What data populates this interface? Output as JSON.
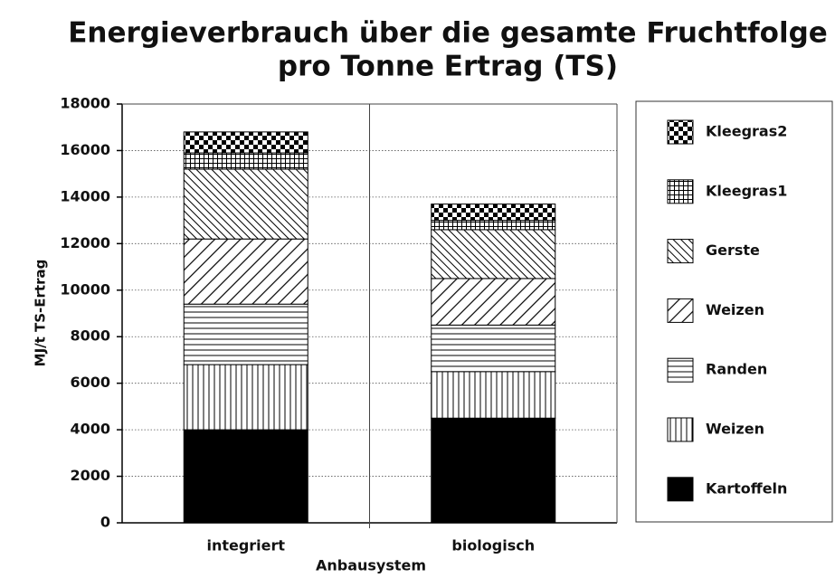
{
  "chart_data": {
    "type": "stacked_bar",
    "title": [
      "Energieverbrauch über die gesamte Fruchtfolge",
      "pro Tonne Ertrag (TS)"
    ],
    "y_label": "MJ/t TS-Ertrag",
    "x_label": "Anbausystem",
    "categories": [
      "integriert",
      "biologisch"
    ],
    "series": [
      {
        "name": "Kartoffeln",
        "pattern": "solid",
        "color": "#000000",
        "values": [
          4000,
          4500
        ]
      },
      {
        "name": "Weizen",
        "pattern": "vertical",
        "color": "#000000",
        "values": [
          2800,
          2000
        ]
      },
      {
        "name": "Randen",
        "pattern": "horizontal",
        "color": "#000000",
        "values": [
          2600,
          2000
        ]
      },
      {
        "name": "Weizen",
        "pattern": "diagonal-down",
        "color": "#000000",
        "values": [
          2800,
          2000
        ]
      },
      {
        "name": "Gerste",
        "pattern": "diagonal-up",
        "color": "#000000",
        "values": [
          3000,
          2100
        ]
      },
      {
        "name": "Kleegras1",
        "pattern": "grid",
        "color": "#000000",
        "values": [
          700,
          400
        ]
      },
      {
        "name": "Kleegras2",
        "pattern": "checker",
        "color": "#000000",
        "values": [
          900,
          700
        ]
      }
    ],
    "ylim": [
      0,
      18000
    ],
    "yticks": [
      0,
      2000,
      4000,
      6000,
      8000,
      10000,
      12000,
      14000,
      16000,
      18000
    ],
    "grid": true,
    "legend": "right"
  }
}
